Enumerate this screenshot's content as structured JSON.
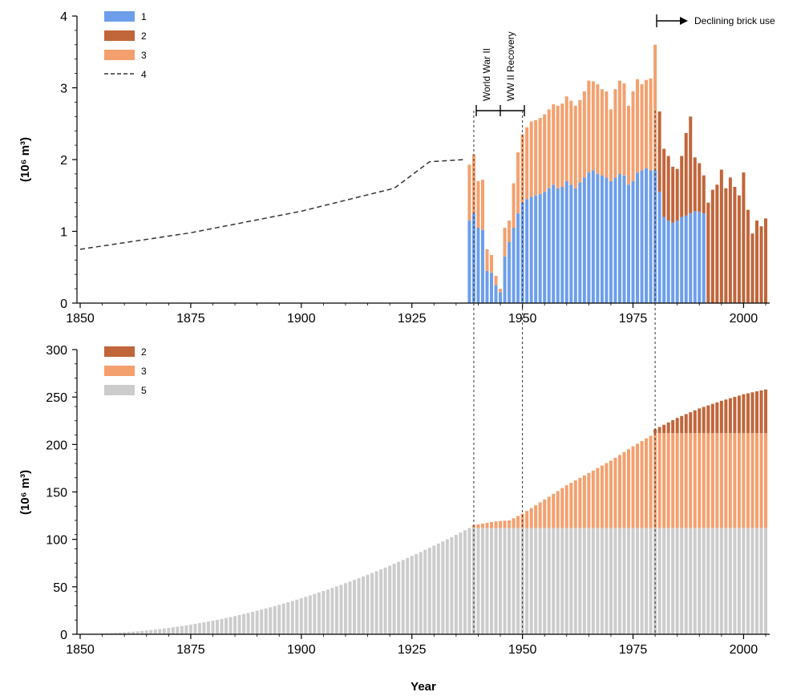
{
  "chart_data": [
    {
      "type": "bar",
      "ylabel": "(10⁶ m³)",
      "ylim": [
        0,
        4
      ],
      "xlim": [
        1850,
        2005
      ],
      "yticks": [
        "0",
        "1",
        "2",
        "3",
        "4"
      ],
      "xticks": [
        "1850",
        "1875",
        "1900",
        "1925",
        "1950",
        "1975",
        "2000"
      ],
      "stacked": true,
      "legend_position": "top-left",
      "legend": [
        {
          "key": "1",
          "label": "1",
          "color": "#6d9eeb",
          "kind": "bar"
        },
        {
          "key": "2",
          "label": "2",
          "color": "#c1653a",
          "kind": "bar"
        },
        {
          "key": "3",
          "label": "3",
          "color": "#f4a06e",
          "kind": "bar"
        },
        {
          "key": "4",
          "label": "4",
          "color": "#333333",
          "kind": "dashed-line"
        }
      ],
      "annotations": {
        "wwii": "World War II",
        "recovery": "WW II Recovery",
        "declining": "Declining brick use"
      },
      "colors": {
        "s1": "#6d9eeb",
        "s2": "#c1653a",
        "s3": "#f4a06e"
      },
      "line_series": {
        "key": "4",
        "x": [
          1850,
          1875,
          1900,
          1921,
          1929,
          1937
        ],
        "y": [
          0.75,
          0.98,
          1.28,
          1.6,
          1.97,
          2.0
        ]
      },
      "bars_s1_s3": {
        "years": [
          1938,
          1939,
          1940,
          1941,
          1942,
          1943,
          1944,
          1945,
          1946,
          1947,
          1948,
          1949,
          1950,
          1951,
          1952,
          1953,
          1954,
          1955,
          1956,
          1957,
          1958,
          1959,
          1960,
          1961,
          1962,
          1963,
          1964,
          1965,
          1966,
          1967,
          1968,
          1969,
          1970,
          1971,
          1972,
          1973,
          1974,
          1975,
          1976,
          1977,
          1978,
          1979,
          1980
        ],
        "s1": [
          1.15,
          1.25,
          1.05,
          1.02,
          0.45,
          0.42,
          0.25,
          0.15,
          0.65,
          0.85,
          1.05,
          1.25,
          1.4,
          1.45,
          1.48,
          1.5,
          1.52,
          1.55,
          1.6,
          1.65,
          1.6,
          1.62,
          1.7,
          1.65,
          1.6,
          1.68,
          1.75,
          1.82,
          1.85,
          1.8,
          1.78,
          1.75,
          1.7,
          1.75,
          1.8,
          1.78,
          1.65,
          1.7,
          1.82,
          1.85,
          1.88,
          1.85,
          1.85
        ],
        "s3": [
          0.78,
          0.82,
          0.65,
          0.7,
          0.3,
          0.25,
          0.13,
          0.05,
          0.4,
          0.3,
          0.62,
          0.85,
          0.95,
          1.0,
          1.05,
          1.05,
          1.06,
          1.08,
          1.1,
          1.12,
          1.15,
          1.16,
          1.18,
          1.17,
          1.15,
          1.15,
          1.2,
          1.28,
          1.24,
          1.25,
          1.2,
          1.2,
          1.0,
          1.23,
          1.3,
          1.28,
          1.1,
          1.25,
          1.3,
          1.2,
          1.23,
          1.28,
          1.75
        ]
      },
      "bars_s2_s1": {
        "years": [
          1981,
          1982,
          1983,
          1984,
          1985,
          1986,
          1987,
          1988,
          1989,
          1990,
          1991
        ],
        "s1": [
          1.55,
          1.2,
          1.15,
          1.12,
          1.15,
          1.2,
          1.22,
          1.25,
          1.28,
          1.27,
          1.25
        ],
        "s2": [
          1.12,
          0.95,
          0.9,
          0.78,
          0.72,
          0.85,
          1.15,
          1.35,
          0.75,
          0.68,
          0.53
        ]
      },
      "bars_s2": {
        "years": [
          1992,
          1993,
          1994,
          1995,
          1996,
          1997,
          1998,
          1999,
          2000,
          2001,
          2002,
          2003,
          2004
        ],
        "s2": [
          1.4,
          1.58,
          1.65,
          1.86,
          1.6,
          1.75,
          1.62,
          1.5,
          1.82,
          1.3,
          0.97,
          1.15,
          1.07
        ]
      },
      "end_bar": {
        "year": 2005,
        "s2": 1.18
      }
    },
    {
      "type": "bar",
      "xlabel": "Year",
      "ylabel": "(10⁶ m³)",
      "ylim": [
        0,
        300
      ],
      "xlim": [
        1850,
        2005
      ],
      "yticks": [
        "0",
        "50",
        "100",
        "150",
        "200",
        "250",
        "300"
      ],
      "xticks": [
        "1850",
        "1875",
        "1900",
        "1925",
        "1950",
        "1975",
        "2000"
      ],
      "stacked": true,
      "legend_position": "top-left",
      "legend": [
        {
          "key": "2",
          "label": "2",
          "color": "#c1653a",
          "kind": "bar"
        },
        {
          "key": "3",
          "label": "3",
          "color": "#f4a06e",
          "kind": "bar"
        },
        {
          "key": "5",
          "label": "5",
          "color": "#cccccc",
          "kind": "bar"
        }
      ],
      "colors": {
        "s2": "#c1653a",
        "s3": "#f4a06e",
        "s5": "#cccccc"
      },
      "series_5_growth": {
        "start_year": 1851,
        "end_year": 1938,
        "start_value": 0.5,
        "end_value": 112,
        "plateau_value": 112,
        "plateau_until": 2005
      },
      "series_3_cumulative": {
        "key_points_year": [
          1939,
          1944,
          1947,
          1950,
          1955,
          1960,
          1965,
          1970,
          1975,
          1980,
          2005
        ],
        "key_points_top": [
          115,
          119,
          120,
          127,
          142,
          157,
          170,
          183,
          198,
          212,
          212
        ]
      },
      "series_2_cumulative": {
        "key_points_year": [
          1980,
          1985,
          1990,
          1995,
          2000,
          2005
        ],
        "key_points_top": [
          216,
          228,
          238,
          246,
          253,
          258
        ]
      }
    }
  ],
  "reference_lines": {
    "years": [
      1939,
      1950,
      1980
    ]
  }
}
